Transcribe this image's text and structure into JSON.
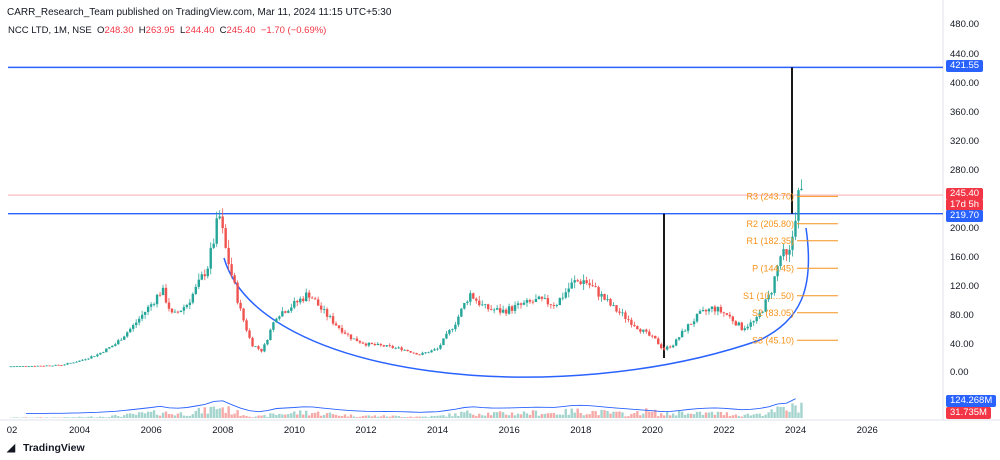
{
  "header": {
    "publisher": "CARR_Research_Team published on TradingView.com, Mar 11, 2024 11:15 UTC+5:30",
    "symbol": "NCC LTD, 1M, NSE",
    "open_label": "O",
    "open": "248.30",
    "high_label": "H",
    "high": "263.95",
    "low_label": "L",
    "low": "244.40",
    "close_label": "C",
    "close": "245.40",
    "change": "−1.70 (−0.69%)"
  },
  "branding": {
    "name": "TradingView",
    "logo_icon": "tradingview-logo-icon"
  },
  "colors": {
    "up": "#26a69a",
    "down": "#ef5350",
    "level_line": "#2962ff",
    "pivot": "#f7931a",
    "last_price": "#f23645",
    "curve": "#2962ff"
  },
  "chart_data": {
    "type": "candlestick",
    "interval": "1M",
    "scale": "log",
    "y_ticks": [
      "480.00",
      "440.00",
      "400.00",
      "360.00",
      "320.00",
      "280.00",
      "200.00",
      "160.00",
      "120.00",
      "80.00",
      "40.00",
      "0.00"
    ],
    "x_ticks": [
      "02",
      "2004",
      "2006",
      "2008",
      "2010",
      "2012",
      "2014",
      "2016",
      "2018",
      "2020",
      "2022",
      "2024",
      "2026"
    ],
    "horizontal_levels": [
      421.55,
      219.7
    ],
    "last_price": {
      "value": "245.40",
      "countdown": "17d 5h"
    },
    "volume_labels": {
      "volume": "124.268M",
      "volume_ma": "31.735M"
    },
    "pivots": [
      {
        "label": "R3 (243.70)",
        "value": 243.7
      },
      {
        "label": "R2 (205.80)",
        "value": 205.8
      },
      {
        "label": "R1 (182.35)",
        "value": 182.35
      },
      {
        "label": "P (144.45)",
        "value": 144.45
      },
      {
        "label": "S1 (10….50)",
        "value": 106.5
      },
      {
        "label": "S2 (83.05)",
        "value": 83.05
      },
      {
        "label": "S3 (45.10)",
        "value": 45.1
      }
    ],
    "price_path": [
      [
        2002.0,
        8
      ],
      [
        2003.0,
        9
      ],
      [
        2003.5,
        10
      ],
      [
        2004.0,
        16
      ],
      [
        2004.5,
        25
      ],
      [
        2005.0,
        40
      ],
      [
        2005.5,
        65
      ],
      [
        2006.0,
        95
      ],
      [
        2006.3,
        115
      ],
      [
        2006.6,
        78
      ],
      [
        2007.0,
        95
      ],
      [
        2007.3,
        120
      ],
      [
        2007.6,
        150
      ],
      [
        2007.9,
        218
      ],
      [
        2008.1,
        165
      ],
      [
        2008.5,
        85
      ],
      [
        2008.8,
        40
      ],
      [
        2009.1,
        30
      ],
      [
        2009.5,
        80
      ],
      [
        2010.0,
        95
      ],
      [
        2010.4,
        110
      ],
      [
        2010.8,
        85
      ],
      [
        2011.2,
        65
      ],
      [
        2011.6,
        48
      ],
      [
        2012.0,
        40
      ],
      [
        2012.5,
        37
      ],
      [
        2013.0,
        33
      ],
      [
        2013.5,
        25
      ],
      [
        2014.0,
        33
      ],
      [
        2014.5,
        70
      ],
      [
        2014.9,
        110
      ],
      [
        2015.3,
        90
      ],
      [
        2015.8,
        85
      ],
      [
        2016.3,
        93
      ],
      [
        2016.8,
        100
      ],
      [
        2017.3,
        95
      ],
      [
        2017.8,
        125
      ],
      [
        2018.1,
        128
      ],
      [
        2018.5,
        110
      ],
      [
        2018.9,
        90
      ],
      [
        2019.3,
        75
      ],
      [
        2019.8,
        55
      ],
      [
        2020.1,
        45
      ],
      [
        2020.3,
        32
      ],
      [
        2020.6,
        40
      ],
      [
        2020.9,
        60
      ],
      [
        2021.3,
        80
      ],
      [
        2021.7,
        90
      ],
      [
        2022.1,
        80
      ],
      [
        2022.5,
        62
      ],
      [
        2022.9,
        72
      ],
      [
        2023.3,
        110
      ],
      [
        2023.6,
        165
      ],
      [
        2023.8,
        155
      ],
      [
        2023.95,
        200
      ],
      [
        2024.05,
        245
      ],
      [
        2024.2,
        245.4
      ]
    ]
  }
}
